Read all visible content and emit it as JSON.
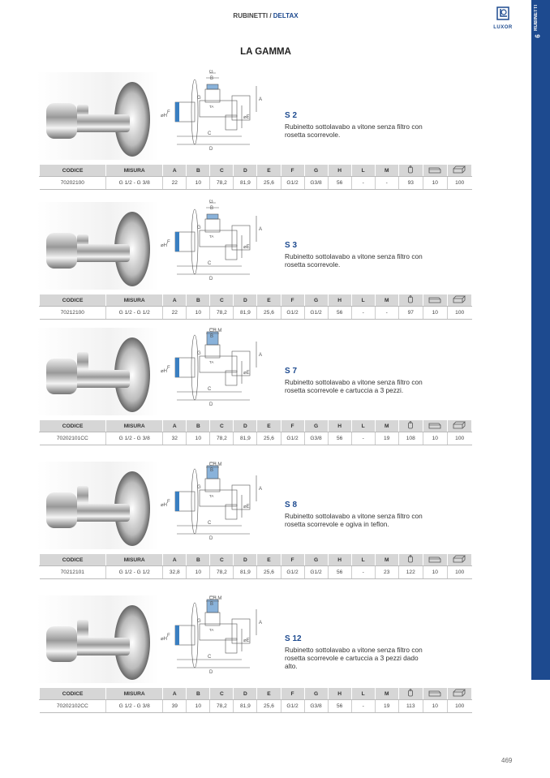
{
  "header": {
    "section": "RUBINETTI",
    "separator": " / ",
    "subsection": "DELTAX"
  },
  "logo": {
    "text": "LUXOR"
  },
  "side_band": {
    "label": "RUBINETTI",
    "number": "6"
  },
  "title": "LA GAMMA",
  "table_headers": [
    "CODICE",
    "MISURA",
    "A",
    "B",
    "C",
    "D",
    "E",
    "F",
    "G",
    "H",
    "L",
    "M"
  ],
  "table_icons": [
    "weight-icon",
    "box-pack-icon",
    "carton-icon"
  ],
  "products": [
    {
      "name": "S 2",
      "description": "Rubinetto sottolavabo a vitone senza filtro con rosetta scorrevole.",
      "top_label": "G",
      "row": [
        "70202100",
        "G 1/2 - G 3/8",
        "22",
        "10",
        "78,2",
        "81,9",
        "25,6",
        "G1/2",
        "G3/8",
        "56",
        "-",
        "-",
        "93",
        "10",
        "100"
      ]
    },
    {
      "name": "S 3",
      "description": "Rubinetto sottolavabo a vitone senza filtro con rosetta scorrevole.",
      "top_label": "G",
      "row": [
        "70212100",
        "G 1/2 - G 1/2",
        "22",
        "10",
        "78,2",
        "81,9",
        "25,6",
        "G1/2",
        "G1/2",
        "56",
        "-",
        "-",
        "97",
        "10",
        "100"
      ]
    },
    {
      "name": "S 7",
      "description": "Rubinetto sottolavabo a vitone senza filtro con rosetta scorrevole e cartuccia a 3 pezzi.",
      "top_label": "CH.M",
      "row": [
        "70202101CC",
        "G 1/2 - G 3/8",
        "32",
        "10",
        "78,2",
        "81,9",
        "25,6",
        "G1/2",
        "G3/8",
        "56",
        "-",
        "19",
        "108",
        "10",
        "100"
      ]
    },
    {
      "name": "S 8",
      "description": "Rubinetto sottolavabo a vitone senza filtro con rosetta scorrevole e ogiva in teflon.",
      "top_label": "CH.M",
      "row": [
        "70212101",
        "G 1/2 - G 1/2",
        "32,8",
        "10",
        "78,2",
        "81,9",
        "25,6",
        "G1/2",
        "G1/2",
        "56",
        "-",
        "23",
        "122",
        "10",
        "100"
      ]
    },
    {
      "name": "S 12",
      "description": "Rubinetto sottolavabo a vitone senza filtro con rosetta scorrevole e cartuccia a 3 pezzi dado alto.",
      "top_label": "CH.M",
      "row": [
        "70202102CC",
        "G 1/2 - G 3/8",
        "39",
        "10",
        "78,2",
        "81,9",
        "25,6",
        "G1/2",
        "G3/8",
        "56",
        "-",
        "19",
        "113",
        "10",
        "100"
      ]
    }
  ],
  "diagram_labels": {
    "b": "B",
    "a": "A",
    "c": "C",
    "d": "D",
    "e": "⌀E",
    "f": "F",
    "h": "⌀H",
    "g": "G",
    "ta": "TA"
  },
  "page_number": "469",
  "colors": {
    "accent": "#1d4a8f",
    "table_header": "#d6d6d6"
  }
}
